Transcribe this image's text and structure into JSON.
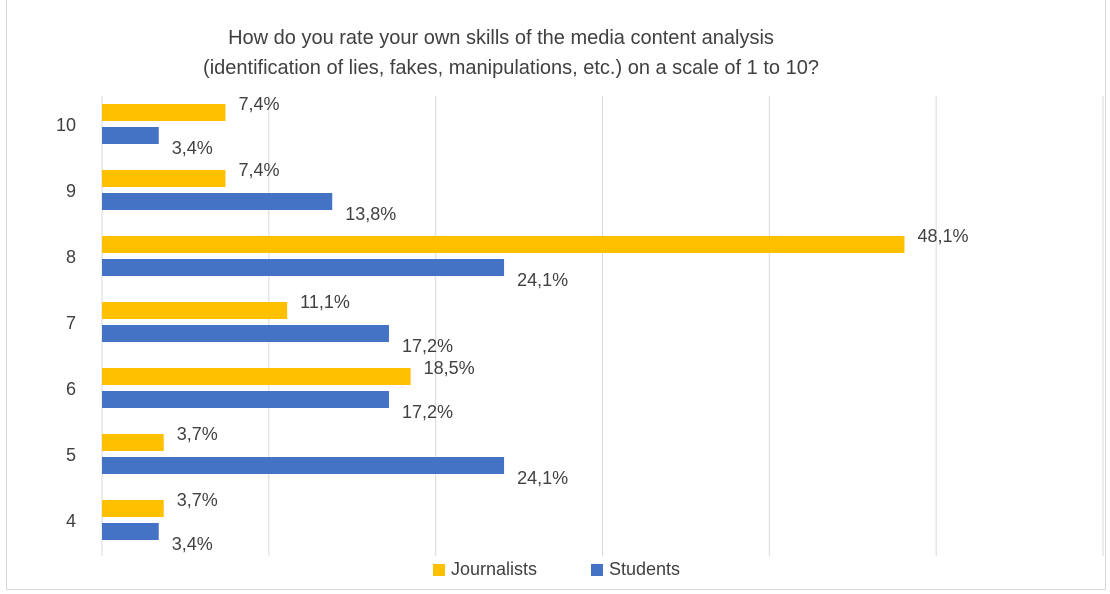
{
  "chart_data": {
    "type": "bar",
    "orientation": "horizontal",
    "title": "How do you rate your own skills of the media content analysis (identification of lies, fakes, manipulations, etc.) on a scale of 1 to 10?",
    "title_lines": [
      "How do you rate your own skills of the media content analysis",
      "(identification of lies, fakes, manipulations, etc.) on a scale of 1 to 10?"
    ],
    "categories": [
      "10",
      "9",
      "8",
      "7",
      "6",
      "5",
      "4"
    ],
    "series": [
      {
        "name": "Journalists",
        "color": "#FFC000",
        "values": [
          7.4,
          7.4,
          48.1,
          11.1,
          18.5,
          3.7,
          3.7
        ],
        "labels": [
          "7,4%",
          "7,4%",
          "48,1%",
          "11,1%",
          "18,5%",
          "3,7%",
          "3,7%"
        ]
      },
      {
        "name": "Students",
        "color": "#4472C4",
        "values": [
          3.4,
          13.8,
          24.1,
          17.2,
          17.2,
          24.1,
          3.4
        ],
        "labels": [
          "3,4%",
          "13,8%",
          "24,1%",
          "17,2%",
          "17,2%",
          "24,1%",
          "3,4%"
        ]
      }
    ],
    "xlim": [
      0,
      60
    ],
    "grid": true,
    "legend_position": "bottom"
  }
}
